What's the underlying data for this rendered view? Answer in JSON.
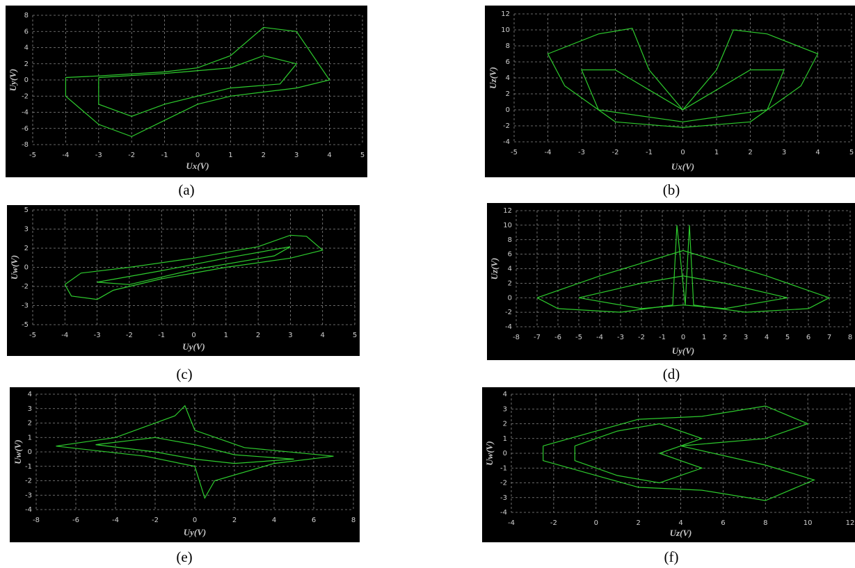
{
  "chart_data": [
    {
      "type": "line",
      "caption": "(a)",
      "x_label": "Ux(V)",
      "y_label": "Uy(V)",
      "xlim": [
        -5,
        5
      ],
      "ylim": [
        -8,
        8
      ],
      "xticks": [
        -5,
        -4,
        -3,
        -2,
        -1,
        0,
        1,
        2,
        3,
        4,
        5
      ],
      "yticks": [
        -8,
        -6,
        -4,
        -2,
        0,
        2,
        4,
        6,
        8
      ],
      "grid": true,
      "series": [
        {
          "color": "#2ecc2e",
          "x": [
            -4,
            -3,
            -1,
            0,
            1,
            2,
            3,
            4,
            3,
            2,
            1,
            0,
            -1,
            -2,
            -3,
            -4,
            -4
          ],
          "values": [
            0.3,
            0.5,
            1,
            1.5,
            3,
            6.5,
            6,
            0,
            -1,
            -1.5,
            -2,
            -3,
            -5,
            -7,
            -5.5,
            -2,
            0.3
          ]
        },
        {
          "color": "#2ecc2e",
          "x": [
            -3,
            -1,
            1,
            2,
            3,
            2.5,
            1,
            -1,
            -2,
            -3,
            -3
          ],
          "values": [
            0.3,
            0.8,
            1.5,
            3,
            2,
            -0.5,
            -1,
            -3,
            -4.5,
            -3,
            0.3
          ]
        }
      ]
    },
    {
      "type": "line",
      "caption": "(b)",
      "x_label": "Ux(V)",
      "y_label": "Uz(V)",
      "xlim": [
        -5,
        5
      ],
      "ylim": [
        -4,
        12
      ],
      "xticks": [
        -5,
        -4,
        -3,
        -2,
        -1,
        0,
        1,
        2,
        3,
        4,
        5
      ],
      "yticks": [
        -4,
        -2,
        0,
        2,
        4,
        6,
        8,
        10,
        12
      ],
      "grid": true,
      "series": [
        {
          "color": "#2ecc2e",
          "x": [
            0,
            -1,
            -1.5,
            -2.5,
            -4,
            -3.5,
            -2,
            0,
            2,
            3.5,
            4,
            2.5,
            1.5,
            1,
            0
          ],
          "values": [
            0,
            5,
            10.2,
            9.5,
            7,
            3,
            -1.5,
            -2.2,
            -1.5,
            3,
            7,
            9.5,
            10,
            5,
            0
          ]
        },
        {
          "color": "#2ecc2e",
          "x": [
            0,
            -1,
            -2,
            -3,
            -2.5,
            0,
            2.5,
            3,
            2,
            1,
            0
          ],
          "values": [
            0,
            2.5,
            5,
            5,
            0,
            -1.5,
            0,
            5,
            5,
            2.5,
            0
          ]
        }
      ]
    },
    {
      "type": "line",
      "caption": "(c)",
      "x_label": "Uy(V)",
      "y_label": "Uw(V)",
      "xlim": [
        -5,
        5
      ],
      "ylim": [
        -5,
        5
      ],
      "xticks": [
        -5,
        -4,
        -3,
        -2,
        -1,
        0,
        1,
        2,
        3,
        4,
        5
      ],
      "yticks": [
        -5,
        {
          "value": -3.333,
          "label": "-3"
        },
        {
          "value": -1.667,
          "label": "-2"
        },
        0,
        {
          "value": 1.667,
          "label": "2"
        },
        {
          "value": 3.333,
          "label": "3"
        },
        5
      ],
      "grid": true,
      "series": [
        {
          "color": "#2ecc2e",
          "x": [
            -4,
            -3.5,
            -2,
            0,
            2,
            3,
            3.5,
            4,
            3,
            1,
            -1,
            -2.5,
            -3,
            -3.8,
            -4
          ],
          "values": [
            -1.5,
            -0.5,
            0,
            0.8,
            1.8,
            2.8,
            2.7,
            1.5,
            0.8,
            0,
            -1,
            -2,
            -2.8,
            -2.5,
            -1.5
          ]
        },
        {
          "color": "#2ecc2e",
          "x": [
            -3,
            -1,
            1,
            3,
            2.5,
            0,
            -2,
            -3
          ],
          "values": [
            -1.3,
            -0.3,
            0.8,
            1.8,
            1,
            -0.2,
            -1.5,
            -1.3
          ]
        }
      ]
    },
    {
      "type": "line",
      "caption": "(d)",
      "x_label": "Uy(V)",
      "y_label": "Uz(V)",
      "xlim": [
        -8,
        8
      ],
      "ylim": [
        -4,
        12
      ],
      "xticks": [
        -8,
        -7,
        -6,
        -5,
        -4,
        -3,
        -2,
        -1,
        0,
        1,
        2,
        3,
        4,
        5,
        6,
        7,
        8
      ],
      "yticks": [
        -4,
        -2,
        0,
        2,
        4,
        6,
        8,
        10,
        12
      ],
      "grid": true,
      "series": [
        {
          "color": "#2ecc2e",
          "x": [
            -7,
            -4,
            0,
            4,
            7,
            6,
            3,
            0.5,
            0.3,
            0.1,
            -0.3,
            -0.5,
            -3,
            -6,
            -7
          ],
          "values": [
            0,
            3,
            6.5,
            3,
            0,
            -1.5,
            -2,
            -1,
            10,
            -1,
            10,
            -1,
            -2,
            -1.5,
            0
          ]
        },
        {
          "color": "#2ecc2e",
          "x": [
            -5,
            -2,
            0,
            2,
            5,
            2,
            0,
            -2,
            -5
          ],
          "values": [
            0,
            2,
            3,
            2,
            0,
            -1.5,
            -1,
            -1.5,
            0
          ]
        }
      ]
    },
    {
      "type": "line",
      "caption": "(e)",
      "x_label": "Uy(V)",
      "y_label": "Uw(V)",
      "xlim": [
        -8,
        8
      ],
      "ylim": [
        -4,
        4
      ],
      "xticks": [
        -8,
        -6,
        -4,
        -2,
        0,
        2,
        4,
        6,
        8
      ],
      "yticks": [
        -4,
        -3,
        -2,
        -1,
        0,
        1,
        2,
        3,
        4
      ],
      "grid": true,
      "series": [
        {
          "color": "#2ecc2e",
          "x": [
            -7,
            -4,
            -1,
            -0.5,
            0,
            2.5,
            7,
            4,
            1,
            0.5,
            0,
            -2.5,
            -7
          ],
          "values": [
            0.4,
            1,
            2.5,
            3.2,
            1.5,
            0.3,
            -0.3,
            -0.8,
            -2,
            -3.2,
            -1,
            -0.3,
            0.4
          ]
        },
        {
          "color": "#2ecc2e",
          "x": [
            -5,
            -2,
            0,
            2,
            5,
            2,
            0,
            -2,
            -5
          ],
          "values": [
            0.5,
            1,
            0.5,
            -0.2,
            -0.5,
            -0.8,
            -0.5,
            0,
            0.5
          ]
        }
      ]
    },
    {
      "type": "line",
      "caption": "(f)",
      "x_label": "Uz(V)",
      "y_label": "Uw(V)",
      "xlim": [
        -4,
        12
      ],
      "ylim": [
        -4,
        4
      ],
      "xticks": [
        -4,
        -2,
        0,
        2,
        4,
        6,
        8,
        10,
        12
      ],
      "yticks": [
        -4,
        -3,
        -2,
        -1,
        0,
        1,
        2,
        3,
        4
      ],
      "grid": true,
      "series": [
        {
          "color": "#2ecc2e",
          "x": [
            -2.5,
            0,
            2,
            5,
            8,
            10,
            8,
            4,
            8,
            10.3,
            8,
            5,
            2,
            0,
            -2.5,
            -2.5
          ],
          "values": [
            0.5,
            1.5,
            2.3,
            2.5,
            3.2,
            2,
            1,
            0.5,
            -0.8,
            -1.8,
            -3.2,
            -2.5,
            -2.3,
            -1.5,
            -0.5,
            0.5
          ]
        },
        {
          "color": "#2ecc2e",
          "x": [
            -1,
            1,
            3,
            5,
            3,
            5,
            3,
            1,
            -1,
            -1
          ],
          "values": [
            0.5,
            1.5,
            2,
            1,
            0,
            -1,
            -2,
            -1.5,
            -0.5,
            0.5
          ]
        }
      ]
    }
  ]
}
